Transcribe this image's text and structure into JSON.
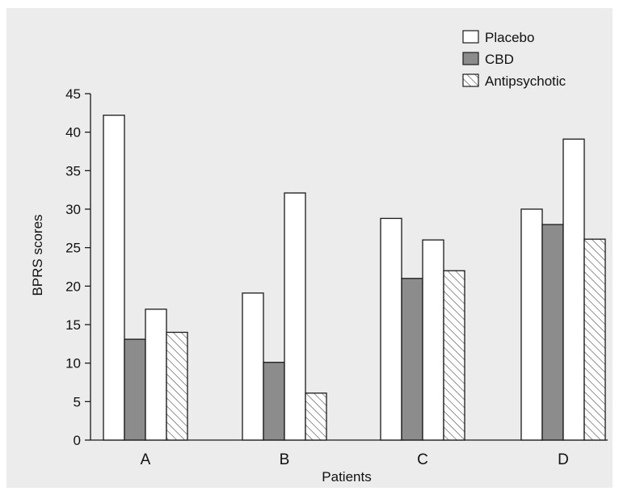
{
  "colors": {
    "panel_background": "#ececec",
    "placebo_fill": "#ffffff",
    "cbd_fill": "#8c8c8c",
    "antipsychotic_fill": "#ffffff",
    "hatch_stroke": "#555555",
    "outline": "#1a1a1a"
  },
  "chart_data": {
    "type": "bar",
    "title": "",
    "xlabel": "Patients",
    "ylabel": "BPRS scores",
    "ylim": [
      0,
      45
    ],
    "yticks": [
      0,
      5,
      10,
      15,
      20,
      25,
      30,
      35,
      40,
      45
    ],
    "grid": false,
    "legend_position": "top-right",
    "legend": [
      {
        "label": "Placebo",
        "pattern": "white"
      },
      {
        "label": "CBD",
        "pattern": "gray"
      },
      {
        "label": "Antipsychotic",
        "pattern": "hatched"
      }
    ],
    "groups": [
      {
        "label": "A",
        "bars": [
          {
            "pattern": "white",
            "value": 42.2
          },
          {
            "pattern": "gray",
            "value": 13.1
          },
          {
            "pattern": "white",
            "value": 17.0
          },
          {
            "pattern": "hatched",
            "value": 14.0
          }
        ]
      },
      {
        "label": "B",
        "bars": [
          {
            "pattern": "white",
            "value": 19.1
          },
          {
            "pattern": "gray",
            "value": 10.1
          },
          {
            "pattern": "white",
            "value": 32.1
          },
          {
            "pattern": "hatched",
            "value": 6.1
          }
        ]
      },
      {
        "label": "C",
        "bars": [
          {
            "pattern": "white",
            "value": 28.8
          },
          {
            "pattern": "gray",
            "value": 21.0
          },
          {
            "pattern": "white",
            "value": 26.0
          },
          {
            "pattern": "hatched",
            "value": 22.0
          }
        ]
      },
      {
        "label": "D",
        "bars": [
          {
            "pattern": "white",
            "value": 30.0
          },
          {
            "pattern": "gray",
            "value": 28.0
          },
          {
            "pattern": "white",
            "value": 39.1
          },
          {
            "pattern": "hatched",
            "value": 26.1
          }
        ]
      }
    ]
  }
}
